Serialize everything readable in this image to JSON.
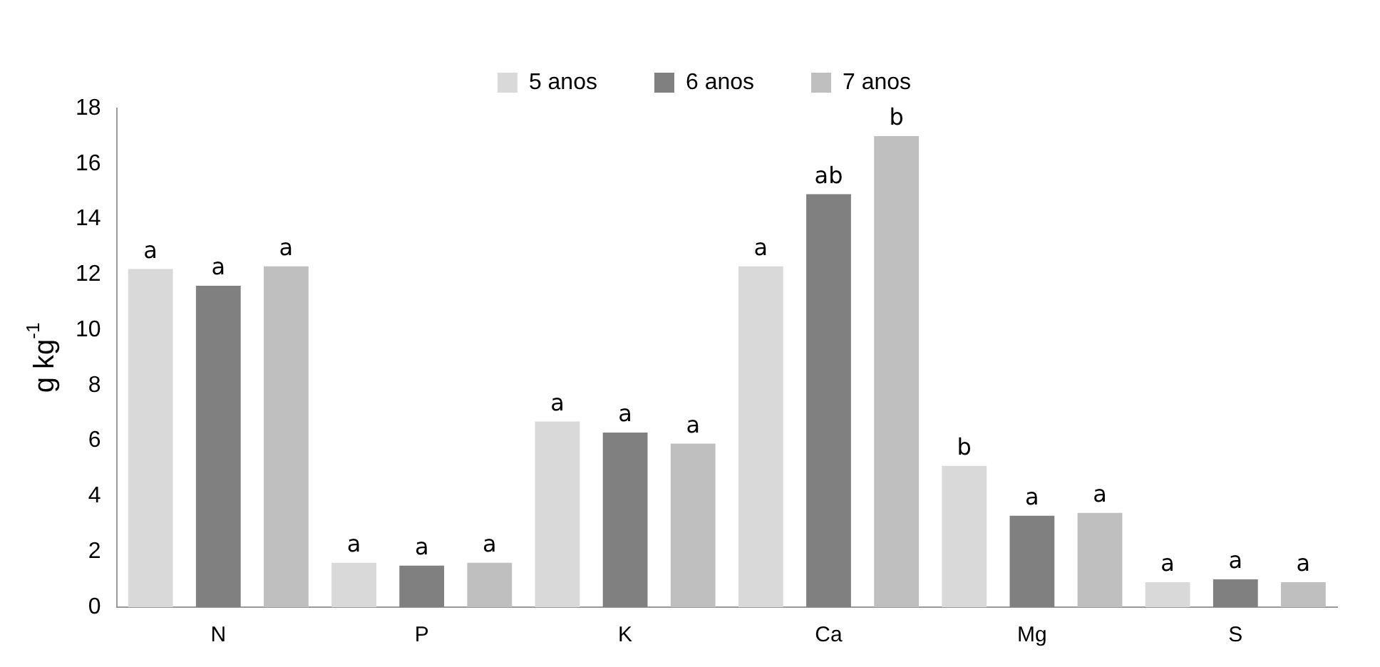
{
  "chart_data": {
    "type": "bar",
    "ylabel": "g kg$^{-1}$",
    "categories": [
      "N",
      "P",
      "K",
      "Ca",
      "Mg",
      "S"
    ],
    "series": [
      {
        "name": "5 anos",
        "color": "#d9d9d9",
        "values": [
          12.2,
          1.6,
          6.7,
          12.3,
          5.1,
          0.9
        ],
        "value_labels": [
          "a",
          "a",
          "a",
          "a",
          "b",
          "a"
        ]
      },
      {
        "name": "6 anos",
        "color": "#808080",
        "values": [
          11.6,
          1.5,
          6.3,
          14.9,
          3.3,
          1.0
        ],
        "value_labels": [
          "a",
          "a",
          "a",
          "ab",
          "a",
          "a"
        ]
      },
      {
        "name": "7 anos",
        "color": "#bfbfbf",
        "values": [
          12.3,
          1.6,
          5.9,
          17.0,
          3.4,
          0.9
        ],
        "value_labels": [
          "a",
          "a",
          "a",
          "b",
          "a",
          "a"
        ]
      }
    ],
    "ylim": [
      0,
      18
    ],
    "yticks": [
      0,
      2,
      4,
      6,
      8,
      10,
      12,
      14,
      16,
      18
    ],
    "grid": false,
    "legend": "top"
  }
}
